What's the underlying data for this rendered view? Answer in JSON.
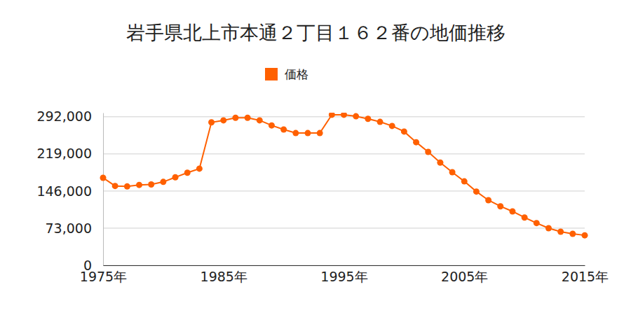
{
  "chart_data": {
    "type": "line",
    "title": "岩手県北上市本通２丁目１６２番の地価推移",
    "x": [
      1975,
      1976,
      1977,
      1978,
      1979,
      1980,
      1981,
      1982,
      1983,
      1984,
      1985,
      1986,
      1987,
      1988,
      1989,
      1990,
      1991,
      1992,
      1993,
      1994,
      1995,
      1996,
      1997,
      1998,
      1999,
      2000,
      2001,
      2002,
      2003,
      2004,
      2005,
      2006,
      2007,
      2008,
      2009,
      2010,
      2011,
      2012,
      2013,
      2014,
      2015
    ],
    "series": [
      {
        "name": "価格",
        "color": "#ff6000",
        "marker": "circle",
        "line_style": "solid",
        "values": [
          172000,
          156000,
          155000,
          158000,
          159000,
          164000,
          173000,
          182000,
          190000,
          281000,
          285000,
          290000,
          290000,
          285000,
          275000,
          267000,
          260000,
          260000,
          260000,
          296000,
          296000,
          293000,
          288000,
          282000,
          274000,
          263000,
          242000,
          223000,
          202000,
          183000,
          165000,
          145000,
          128000,
          116000,
          106000,
          94000,
          83000,
          73000,
          66000,
          62000,
          59000
        ]
      }
    ],
    "xlim": [
      1975,
      2015
    ],
    "xticks": [
      {
        "value": 1975,
        "label": "1975年"
      },
      {
        "value": 1985,
        "label": "1985年"
      },
      {
        "value": 1995,
        "label": "1995年"
      },
      {
        "value": 2005,
        "label": "2005年"
      },
      {
        "value": 2015,
        "label": "2015年"
      }
    ],
    "ylim": [
      0,
      300000
    ],
    "yticks": [
      0,
      {
        "value": 73000,
        "label": "73,000"
      },
      {
        "value": 146000,
        "label": "146,000"
      },
      {
        "value": 219000,
        "label": "219,000"
      },
      {
        "value": 292000,
        "label": "292,000"
      }
    ],
    "grid": "y",
    "legend": "top"
  }
}
